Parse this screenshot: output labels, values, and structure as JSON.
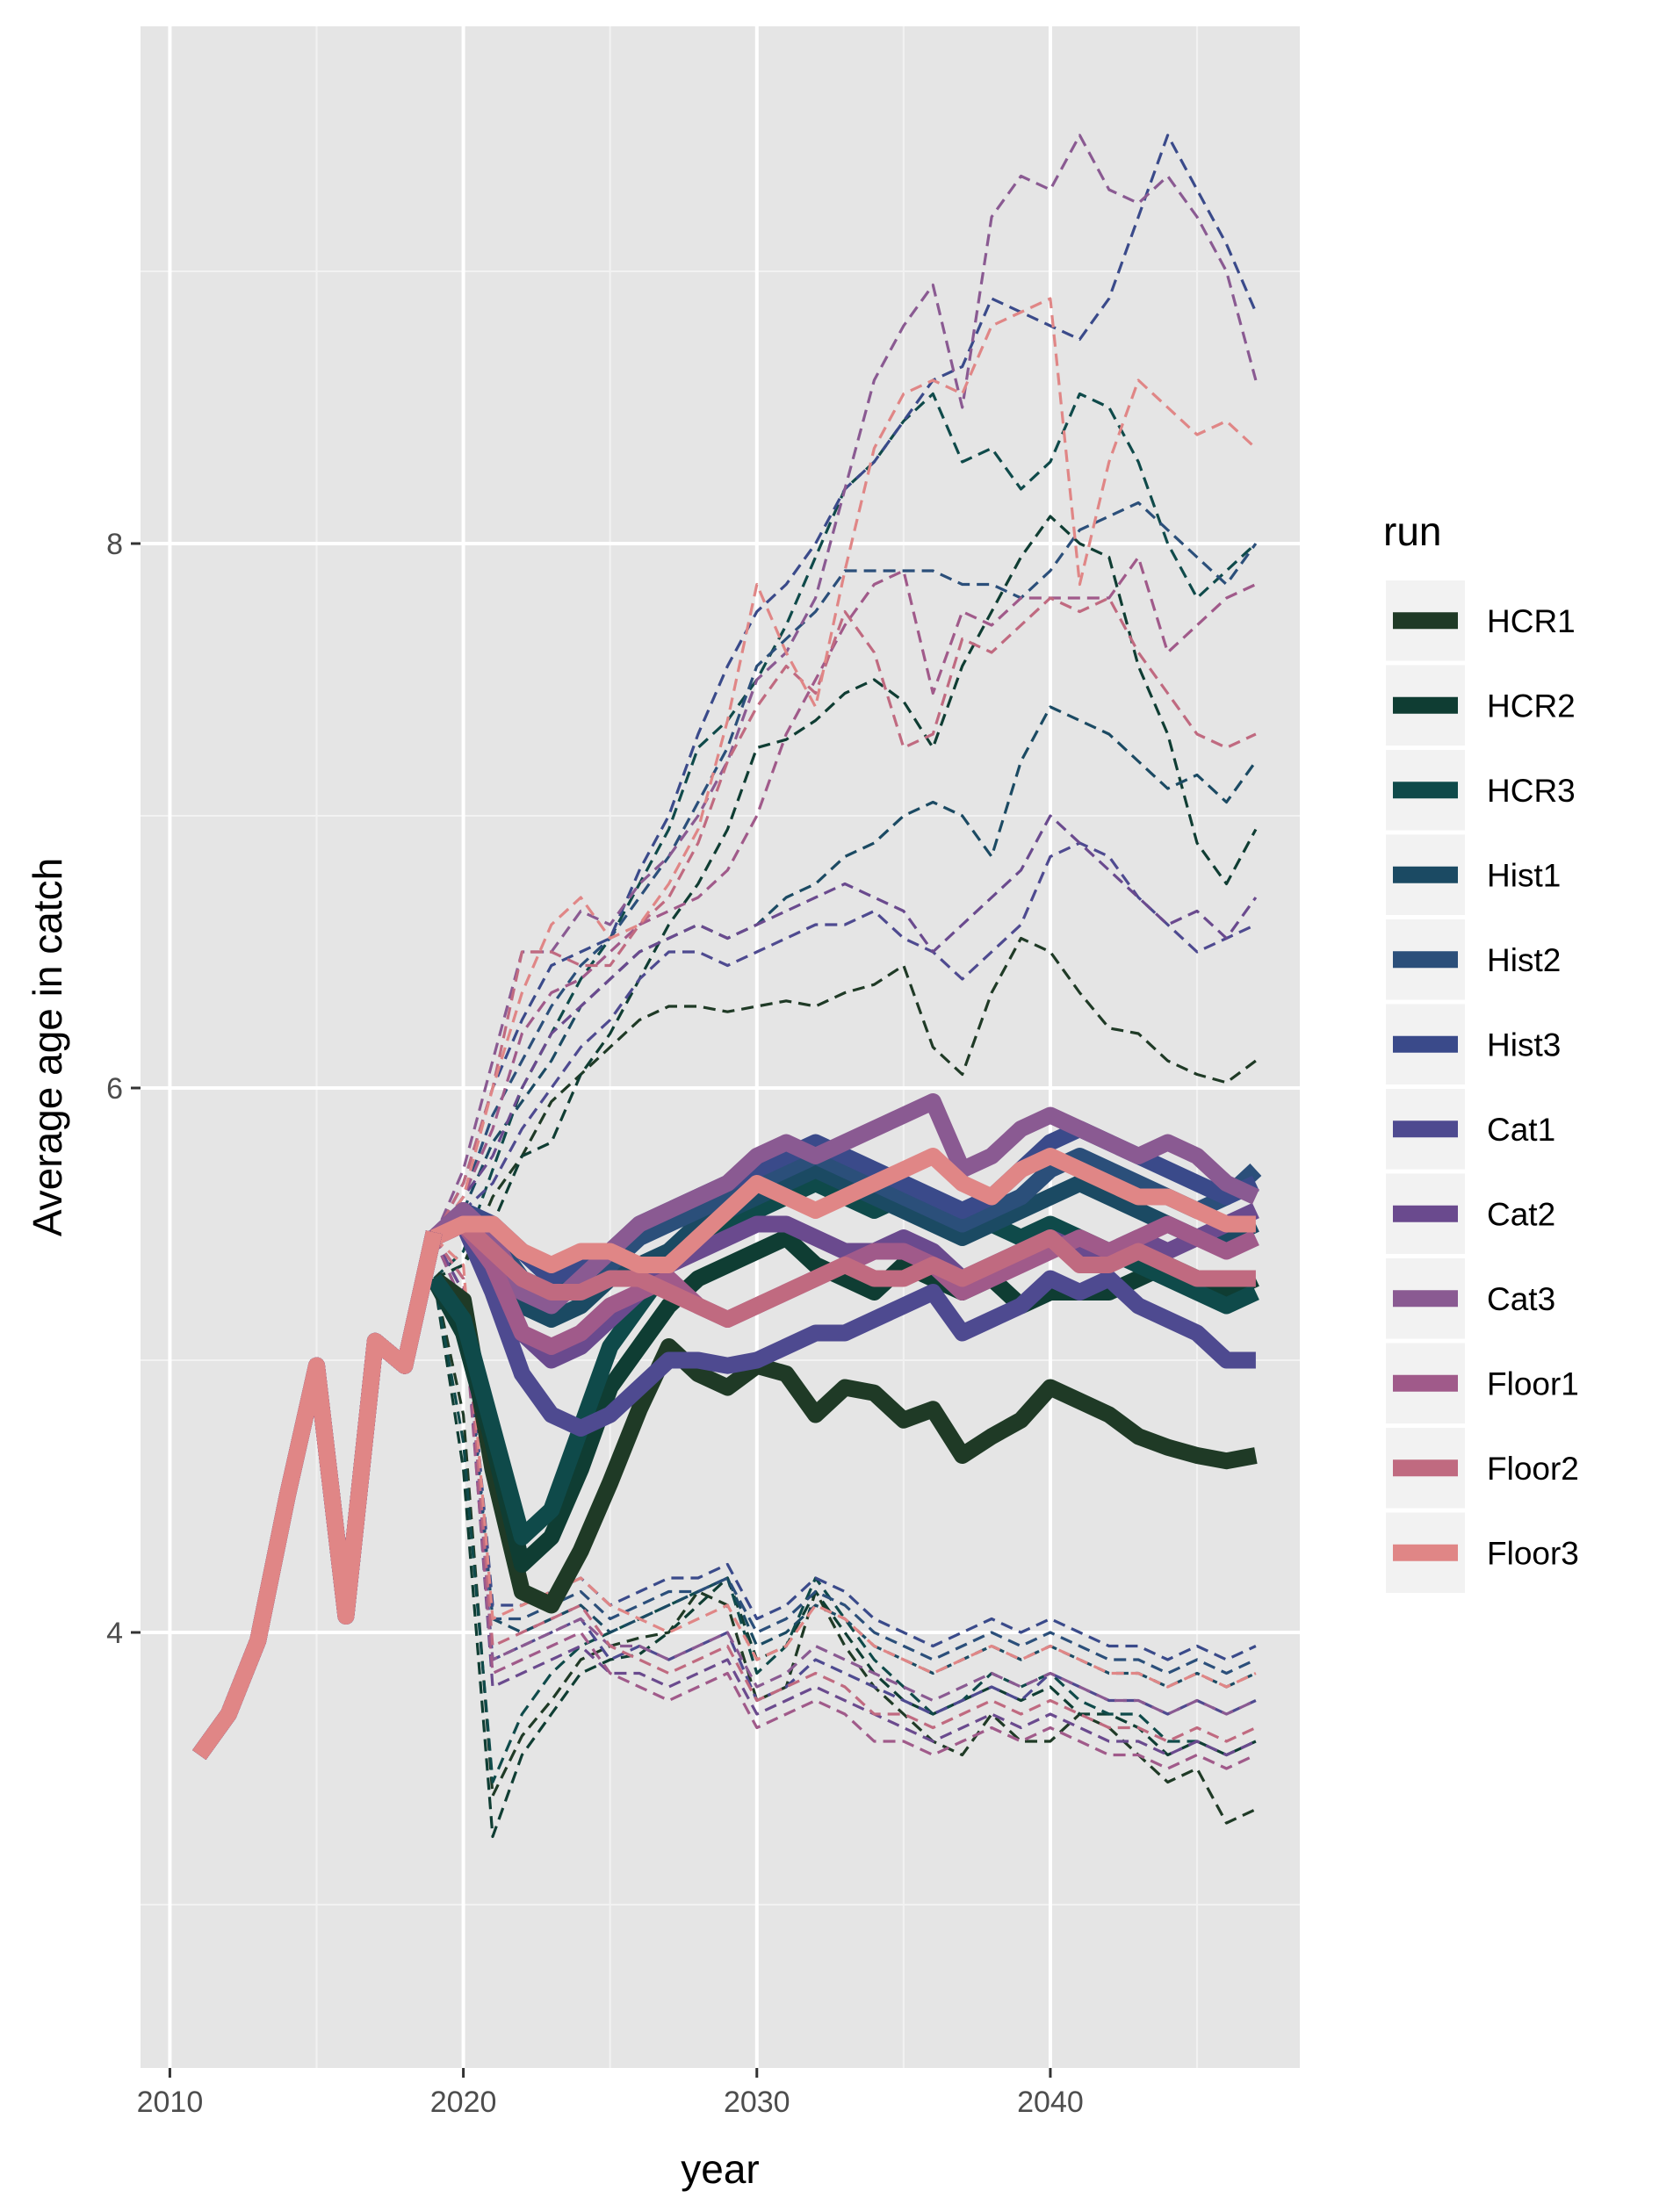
{
  "chart_data": {
    "type": "line",
    "xlabel": "year",
    "ylabel": "Average age in catch",
    "xlim": [
      2009,
      2048.5
    ],
    "ylim": [
      2.4,
      9.9
    ],
    "x_ticks": [
      2010,
      2020,
      2030,
      2040
    ],
    "x_tick_labels": [
      "2010",
      "2020",
      "2030",
      "2040"
    ],
    "y_ticks": [
      4,
      6,
      8
    ],
    "y_tick_labels": [
      "4",
      "6",
      "8"
    ],
    "x_minor_ticks": [
      2015,
      2025,
      2035,
      2045
    ],
    "y_minor_ticks": [
      3,
      5,
      7,
      9
    ],
    "grid": true,
    "background": "#e5e5e5",
    "legend": {
      "title": "run",
      "position": "right"
    },
    "historical": {
      "x": [
        2011,
        2012,
        2013,
        2014,
        2015,
        2016,
        2017,
        2018,
        2019
      ],
      "y": [
        3.55,
        3.7,
        3.97,
        4.5,
        4.98,
        4.06,
        5.07,
        4.98,
        5.47
      ]
    },
    "years": [
      2019,
      2020,
      2021,
      2022,
      2023,
      2024,
      2025,
      2026,
      2027,
      2028,
      2029,
      2030,
      2031,
      2032,
      2033,
      2034,
      2035,
      2036,
      2037,
      2038,
      2039,
      2040,
      2041,
      2042,
      2043,
      2044,
      2045,
      2046,
      2047
    ],
    "series": [
      {
        "name": "HCR1",
        "color": "#1f3a26",
        "median": [
          5.3,
          5.22,
          4.6,
          4.15,
          4.1,
          4.3,
          4.55,
          4.82,
          5.05,
          4.95,
          4.9,
          4.98,
          4.95,
          4.8,
          4.9,
          4.88,
          4.78,
          4.82,
          4.65,
          4.72,
          4.78,
          4.9,
          4.85,
          4.8,
          4.72,
          4.68,
          4.65,
          4.63,
          4.65
        ],
        "upper": [
          5.3,
          5.35,
          5.6,
          5.75,
          5.95,
          6.05,
          6.15,
          6.25,
          6.3,
          6.3,
          6.28,
          6.3,
          6.32,
          6.3,
          6.35,
          6.38,
          6.45,
          6.15,
          6.05,
          6.35,
          6.55,
          6.5,
          6.35,
          6.22,
          6.2,
          6.1,
          6.05,
          6.02,
          6.1
        ],
        "lower": [
          5.3,
          4.8,
          3.4,
          3.62,
          3.75,
          3.9,
          3.95,
          3.98,
          4.0,
          4.15,
          4.1,
          3.75,
          3.8,
          4.15,
          3.95,
          3.8,
          3.7,
          3.6,
          3.55,
          3.7,
          3.6,
          3.6,
          3.7,
          3.65,
          3.55,
          3.45,
          3.5,
          3.3,
          3.35
        ]
      },
      {
        "name": "HCR2",
        "color": "#0f3d33",
        "median": [
          5.3,
          5.1,
          4.7,
          4.25,
          4.35,
          4.6,
          4.9,
          5.05,
          5.2,
          5.3,
          5.35,
          5.4,
          5.45,
          5.35,
          5.3,
          5.25,
          5.35,
          5.3,
          5.25,
          5.3,
          5.2,
          5.25,
          5.25,
          5.25,
          5.3,
          5.35,
          5.3,
          5.25,
          5.3
        ],
        "upper": [
          5.3,
          5.35,
          5.5,
          5.75,
          5.8,
          6.05,
          6.2,
          6.4,
          6.6,
          6.75,
          6.95,
          7.25,
          7.28,
          7.35,
          7.45,
          7.5,
          7.42,
          7.25,
          7.55,
          7.75,
          7.95,
          8.1,
          8.0,
          7.95,
          7.55,
          7.3,
          6.9,
          6.75,
          6.95
        ],
        "lower": [
          5.3,
          4.6,
          3.25,
          3.55,
          3.7,
          3.85,
          3.9,
          3.92,
          4.0,
          4.1,
          4.2,
          3.9,
          3.95,
          4.15,
          4.0,
          3.85,
          3.75,
          3.7,
          3.75,
          3.8,
          3.75,
          3.8,
          3.7,
          3.7,
          3.65,
          3.55,
          3.6,
          3.55,
          3.6
        ]
      },
      {
        "name": "HCR3",
        "color": "#0f4a4a",
        "median": [
          5.3,
          5.15,
          4.75,
          4.35,
          4.45,
          4.75,
          5.05,
          5.2,
          5.35,
          5.45,
          5.5,
          5.55,
          5.6,
          5.65,
          5.6,
          5.55,
          5.6,
          5.55,
          5.5,
          5.5,
          5.45,
          5.5,
          5.45,
          5.4,
          5.35,
          5.3,
          5.25,
          5.2,
          5.25
        ],
        "upper": [
          5.3,
          5.4,
          5.7,
          6.0,
          6.2,
          6.4,
          6.55,
          6.75,
          6.95,
          7.25,
          7.35,
          7.5,
          7.7,
          7.95,
          8.2,
          8.3,
          8.45,
          8.55,
          8.3,
          8.35,
          8.2,
          8.3,
          8.55,
          8.5,
          8.3,
          8.0,
          7.8,
          7.9,
          8.0
        ],
        "lower": [
          5.3,
          4.7,
          3.45,
          3.7,
          3.85,
          3.95,
          4.0,
          4.05,
          4.1,
          4.15,
          4.2,
          3.85,
          3.95,
          4.2,
          4.05,
          3.9,
          3.8,
          3.7,
          3.75,
          3.85,
          3.8,
          3.85,
          3.75,
          3.7,
          3.7,
          3.6,
          3.6,
          3.55,
          3.6
        ]
      },
      {
        "name": "Hist1",
        "color": "#1b4a63",
        "median": [
          5.45,
          5.5,
          5.4,
          5.2,
          5.15,
          5.2,
          5.3,
          5.35,
          5.4,
          5.5,
          5.55,
          5.6,
          5.65,
          5.7,
          5.65,
          5.6,
          5.55,
          5.5,
          5.45,
          5.5,
          5.55,
          5.6,
          5.65,
          5.6,
          5.55,
          5.5,
          5.45,
          5.45,
          5.5
        ],
        "upper": [
          5.45,
          5.55,
          5.8,
          5.95,
          6.1,
          6.3,
          6.4,
          6.5,
          6.55,
          6.6,
          6.55,
          6.6,
          6.7,
          6.75,
          6.85,
          6.9,
          7.0,
          7.05,
          7.0,
          6.85,
          7.2,
          7.4,
          7.35,
          7.3,
          7.2,
          7.1,
          7.15,
          7.05,
          7.2
        ],
        "lower": [
          5.45,
          5.2,
          4.05,
          4.0,
          4.05,
          4.1,
          4.0,
          4.05,
          4.1,
          4.15,
          4.2,
          3.95,
          4.0,
          4.1,
          4.05,
          3.95,
          3.9,
          3.85,
          3.9,
          3.95,
          3.9,
          3.95,
          3.9,
          3.85,
          3.85,
          3.8,
          3.85,
          3.8,
          3.85
        ]
      },
      {
        "name": "Hist2",
        "color": "#2b4f7a",
        "median": [
          5.45,
          5.5,
          5.45,
          5.3,
          5.25,
          5.3,
          5.35,
          5.45,
          5.5,
          5.55,
          5.6,
          5.65,
          5.7,
          5.75,
          5.7,
          5.65,
          5.6,
          5.55,
          5.5,
          5.55,
          5.6,
          5.7,
          5.75,
          5.7,
          5.65,
          5.6,
          5.55,
          5.6,
          5.7
        ],
        "upper": [
          5.45,
          5.6,
          5.9,
          6.1,
          6.3,
          6.45,
          6.55,
          6.7,
          6.85,
          7.05,
          7.25,
          7.55,
          7.65,
          7.75,
          7.9,
          7.9,
          7.9,
          7.9,
          7.85,
          7.85,
          7.8,
          7.9,
          8.05,
          8.1,
          8.15,
          8.05,
          7.95,
          7.85,
          8.0
        ],
        "lower": [
          5.45,
          5.25,
          4.05,
          4.05,
          4.1,
          4.15,
          4.05,
          4.1,
          4.15,
          4.15,
          4.2,
          4.0,
          4.05,
          4.15,
          4.1,
          4.0,
          3.95,
          3.9,
          3.95,
          4.0,
          3.95,
          4.0,
          3.95,
          3.9,
          3.9,
          3.85,
          3.9,
          3.85,
          3.9
        ]
      },
      {
        "name": "Hist3",
        "color": "#3a4a8a",
        "median": [
          5.45,
          5.55,
          5.5,
          5.4,
          5.3,
          5.35,
          5.4,
          5.5,
          5.55,
          5.6,
          5.65,
          5.7,
          5.75,
          5.8,
          5.75,
          5.7,
          5.65,
          5.6,
          5.55,
          5.6,
          5.7,
          5.8,
          5.85,
          5.8,
          5.75,
          5.7,
          5.65,
          5.6,
          5.65
        ],
        "upper": [
          5.45,
          5.65,
          6.0,
          6.25,
          6.45,
          6.5,
          6.55,
          6.8,
          7.0,
          7.3,
          7.55,
          7.75,
          7.85,
          8.0,
          8.2,
          8.3,
          8.45,
          8.6,
          8.65,
          8.9,
          8.85,
          8.8,
          8.75,
          8.9,
          9.2,
          9.5,
          9.3,
          9.1,
          8.85
        ],
        "lower": [
          5.45,
          5.3,
          4.1,
          4.1,
          4.15,
          4.2,
          4.1,
          4.15,
          4.2,
          4.2,
          4.25,
          4.05,
          4.1,
          4.2,
          4.15,
          4.05,
          4.0,
          3.95,
          4.0,
          4.05,
          4.0,
          4.05,
          4.0,
          3.95,
          3.95,
          3.9,
          3.95,
          3.9,
          3.95
        ]
      },
      {
        "name": "Cat1",
        "color": "#4e4a90",
        "median": [
          5.45,
          5.5,
          5.25,
          4.95,
          4.8,
          4.75,
          4.8,
          4.9,
          5.0,
          5.0,
          4.98,
          5.0,
          5.05,
          5.1,
          5.1,
          5.15,
          5.2,
          5.25,
          5.1,
          5.15,
          5.2,
          5.3,
          5.25,
          5.3,
          5.2,
          5.15,
          5.1,
          5.0,
          5.0
        ],
        "upper": [
          5.45,
          5.55,
          5.65,
          5.85,
          6.0,
          6.15,
          6.25,
          6.4,
          6.5,
          6.5,
          6.45,
          6.5,
          6.55,
          6.6,
          6.6,
          6.65,
          6.55,
          6.5,
          6.4,
          6.5,
          6.6,
          6.85,
          6.9,
          6.85,
          6.7,
          6.6,
          6.5,
          6.55,
          6.6
        ],
        "lower": [
          5.45,
          5.2,
          3.9,
          3.95,
          4.0,
          4.05,
          3.9,
          3.95,
          3.9,
          3.95,
          4.0,
          3.75,
          3.8,
          3.9,
          3.85,
          3.8,
          3.75,
          3.7,
          3.75,
          3.8,
          3.75,
          3.85,
          3.8,
          3.75,
          3.75,
          3.7,
          3.75,
          3.7,
          3.75
        ]
      },
      {
        "name": "Cat2",
        "color": "#6a4a8e",
        "median": [
          5.45,
          5.55,
          5.35,
          5.1,
          5.0,
          5.05,
          5.15,
          5.25,
          5.35,
          5.4,
          5.45,
          5.5,
          5.5,
          5.45,
          5.4,
          5.4,
          5.45,
          5.4,
          5.3,
          5.35,
          5.4,
          5.45,
          5.4,
          5.4,
          5.45,
          5.4,
          5.45,
          5.5,
          5.55
        ],
        "upper": [
          5.45,
          5.6,
          5.75,
          6.0,
          6.2,
          6.3,
          6.4,
          6.5,
          6.55,
          6.6,
          6.55,
          6.6,
          6.65,
          6.7,
          6.75,
          6.7,
          6.65,
          6.5,
          6.6,
          6.7,
          6.8,
          7.0,
          6.9,
          6.8,
          6.7,
          6.6,
          6.65,
          6.55,
          6.7
        ],
        "lower": [
          5.45,
          5.25,
          3.8,
          3.85,
          3.9,
          3.95,
          3.85,
          3.85,
          3.8,
          3.85,
          3.9,
          3.7,
          3.75,
          3.8,
          3.75,
          3.7,
          3.65,
          3.6,
          3.65,
          3.7,
          3.65,
          3.7,
          3.65,
          3.6,
          3.6,
          3.55,
          3.6,
          3.55,
          3.6
        ]
      },
      {
        "name": "Cat3",
        "color": "#8a5a92",
        "median": [
          5.45,
          5.55,
          5.45,
          5.25,
          5.2,
          5.3,
          5.4,
          5.5,
          5.55,
          5.6,
          5.65,
          5.75,
          5.8,
          5.75,
          5.8,
          5.85,
          5.9,
          5.95,
          5.7,
          5.75,
          5.85,
          5.9,
          5.85,
          5.8,
          5.75,
          5.8,
          5.75,
          5.65,
          5.6
        ],
        "upper": [
          5.45,
          5.7,
          6.1,
          6.5,
          6.5,
          6.65,
          6.6,
          6.75,
          6.85,
          7.0,
          7.2,
          7.5,
          7.6,
          7.8,
          8.2,
          8.6,
          8.8,
          8.95,
          8.5,
          9.2,
          9.35,
          9.3,
          9.5,
          9.3,
          9.25,
          9.35,
          9.2,
          9.0,
          8.6
        ],
        "lower": [
          5.45,
          5.3,
          3.9,
          3.95,
          4.0,
          4.05,
          3.95,
          3.95,
          3.9,
          3.95,
          4.0,
          3.8,
          3.85,
          3.95,
          3.9,
          3.85,
          3.8,
          3.75,
          3.8,
          3.85,
          3.8,
          3.85,
          3.8,
          3.75,
          3.75,
          3.7,
          3.75,
          3.7,
          3.75
        ]
      },
      {
        "name": "Floor1",
        "color": "#a05a8a",
        "median": [
          5.45,
          5.5,
          5.35,
          5.1,
          5.05,
          5.1,
          5.2,
          5.25,
          5.3,
          5.2,
          5.15,
          5.2,
          5.25,
          5.3,
          5.35,
          5.4,
          5.4,
          5.35,
          5.25,
          5.3,
          5.35,
          5.4,
          5.45,
          5.4,
          5.45,
          5.5,
          5.45,
          5.4,
          5.45
        ],
        "upper": [
          5.45,
          5.6,
          5.85,
          6.2,
          6.35,
          6.4,
          6.5,
          6.6,
          6.65,
          6.7,
          6.8,
          7.0,
          7.3,
          7.5,
          7.7,
          7.85,
          7.9,
          7.45,
          7.75,
          7.7,
          7.8,
          7.8,
          7.8,
          7.8,
          7.95,
          7.6,
          7.7,
          7.8,
          7.85
        ],
        "lower": [
          5.45,
          5.2,
          3.85,
          3.9,
          3.95,
          4.0,
          3.85,
          3.8,
          3.75,
          3.8,
          3.85,
          3.65,
          3.7,
          3.75,
          3.7,
          3.6,
          3.6,
          3.55,
          3.6,
          3.65,
          3.6,
          3.65,
          3.6,
          3.55,
          3.55,
          3.5,
          3.55,
          3.5,
          3.55
        ]
      },
      {
        "name": "Floor2",
        "color": "#c06a80",
        "median": [
          5.45,
          5.5,
          5.4,
          5.3,
          5.25,
          5.25,
          5.3,
          5.3,
          5.25,
          5.2,
          5.15,
          5.2,
          5.25,
          5.3,
          5.35,
          5.3,
          5.3,
          5.35,
          5.3,
          5.35,
          5.4,
          5.45,
          5.35,
          5.35,
          5.4,
          5.35,
          5.3,
          5.3,
          5.3
        ],
        "upper": [
          5.45,
          5.65,
          6.0,
          6.5,
          6.5,
          6.45,
          6.45,
          6.6,
          6.7,
          6.9,
          7.2,
          7.4,
          7.55,
          7.45,
          7.75,
          7.6,
          7.25,
          7.3,
          7.65,
          7.6,
          7.7,
          7.8,
          7.75,
          7.8,
          7.6,
          7.45,
          7.3,
          7.25,
          7.3
        ],
        "lower": [
          5.45,
          5.3,
          3.95,
          4.0,
          4.05,
          4.1,
          3.95,
          3.9,
          3.85,
          3.9,
          3.95,
          3.75,
          3.8,
          3.85,
          3.8,
          3.7,
          3.7,
          3.65,
          3.7,
          3.75,
          3.7,
          3.75,
          3.7,
          3.65,
          3.65,
          3.6,
          3.65,
          3.6,
          3.65
        ]
      },
      {
        "name": "Floor3",
        "color": "#e08686",
        "median": [
          5.45,
          5.5,
          5.5,
          5.4,
          5.35,
          5.4,
          5.4,
          5.35,
          5.35,
          5.45,
          5.55,
          5.65,
          5.6,
          5.55,
          5.6,
          5.65,
          5.7,
          5.75,
          5.65,
          5.6,
          5.7,
          5.75,
          5.7,
          5.65,
          5.6,
          5.6,
          5.55,
          5.5,
          5.5
        ],
        "upper": [
          5.45,
          5.6,
          6.0,
          6.35,
          6.6,
          6.7,
          6.55,
          6.6,
          6.75,
          6.95,
          7.35,
          7.85,
          7.6,
          7.4,
          7.9,
          8.35,
          8.55,
          8.6,
          8.55,
          8.8,
          8.85,
          8.9,
          7.85,
          8.3,
          8.6,
          8.5,
          8.4,
          8.45,
          8.35
        ],
        "lower": [
          5.45,
          5.35,
          4.05,
          4.1,
          4.15,
          4.2,
          4.1,
          4.05,
          4.0,
          4.05,
          4.1,
          3.9,
          3.95,
          4.1,
          4.05,
          3.95,
          3.9,
          3.85,
          3.9,
          3.95,
          3.9,
          3.95,
          3.9,
          3.85,
          3.85,
          3.8,
          3.85,
          3.8,
          3.85
        ]
      }
    ]
  }
}
